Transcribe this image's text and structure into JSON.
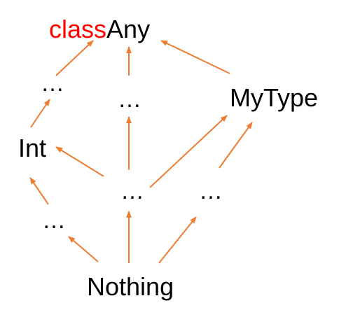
{
  "nodes": {
    "any_keyword": "class",
    "any_name": "Any",
    "dots_top_left": "…",
    "dots_top_middle": "…",
    "mytype": "MyType",
    "int": "Int",
    "dots_mid_center": "…",
    "dots_mid_right": "…",
    "dots_bottom_left": "…",
    "nothing": "Nothing"
  },
  "colors": {
    "keyword": "#ff0000",
    "text": "#000000",
    "arrow": "#ed7d31"
  },
  "edges": [
    {
      "from": "dots_top_left",
      "to": "any"
    },
    {
      "from": "dots_top_middle",
      "to": "any"
    },
    {
      "from": "mytype",
      "to": "any"
    },
    {
      "from": "int",
      "to": "dots_top_left"
    },
    {
      "from": "dots_mid_center",
      "to": "dots_top_middle"
    },
    {
      "from": "dots_mid_center",
      "to": "int"
    },
    {
      "from": "dots_mid_center",
      "to": "mytype"
    },
    {
      "from": "dots_mid_right",
      "to": "mytype"
    },
    {
      "from": "dots_bottom_left",
      "to": "int"
    },
    {
      "from": "nothing",
      "to": "dots_bottom_left"
    },
    {
      "from": "nothing",
      "to": "dots_mid_center"
    },
    {
      "from": "nothing",
      "to": "dots_mid_right"
    }
  ]
}
